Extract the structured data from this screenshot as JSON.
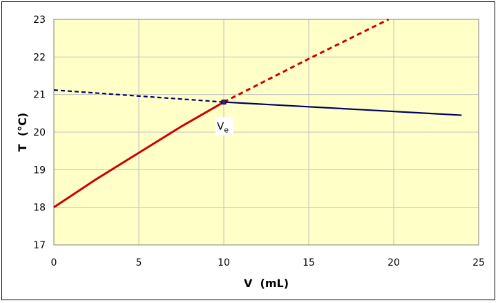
{
  "chart_data": {
    "type": "line",
    "xlabel": "V  (mL)",
    "ylabel": "T  (°C)",
    "xlim": [
      0,
      25
    ],
    "ylim": [
      17,
      23
    ],
    "xticks": [
      0,
      5,
      10,
      15,
      20,
      25
    ],
    "yticks": [
      17,
      18,
      19,
      20,
      21,
      22,
      23
    ],
    "grid": true,
    "legend": "none",
    "colors": {
      "plot_background": "#ffffc8",
      "grid": "#c0c0c0",
      "red": "#cc0000",
      "blue": "#000066"
    },
    "series": [
      {
        "style": "solid",
        "color": "#cc0000",
        "x": [
          0,
          2.5,
          5,
          7.5,
          10
        ],
        "y": [
          18.0,
          18.75,
          19.45,
          20.15,
          20.8
        ]
      },
      {
        "style": "dashed",
        "color": "#cc0000",
        "x": [
          10,
          15,
          19.7
        ],
        "y": [
          20.8,
          21.95,
          23.0
        ]
      },
      {
        "style": "dashed",
        "color": "#000066",
        "x": [
          0,
          10
        ],
        "y": [
          21.12,
          20.8
        ]
      },
      {
        "style": "solid",
        "color": "#000066",
        "x": [
          10,
          24
        ],
        "y": [
          20.8,
          20.45
        ]
      }
    ],
    "marker": {
      "x": 10,
      "y": 20.8
    },
    "annotation": {
      "text": "V",
      "subscript": "e",
      "x": 10,
      "y": 20.8
    }
  }
}
